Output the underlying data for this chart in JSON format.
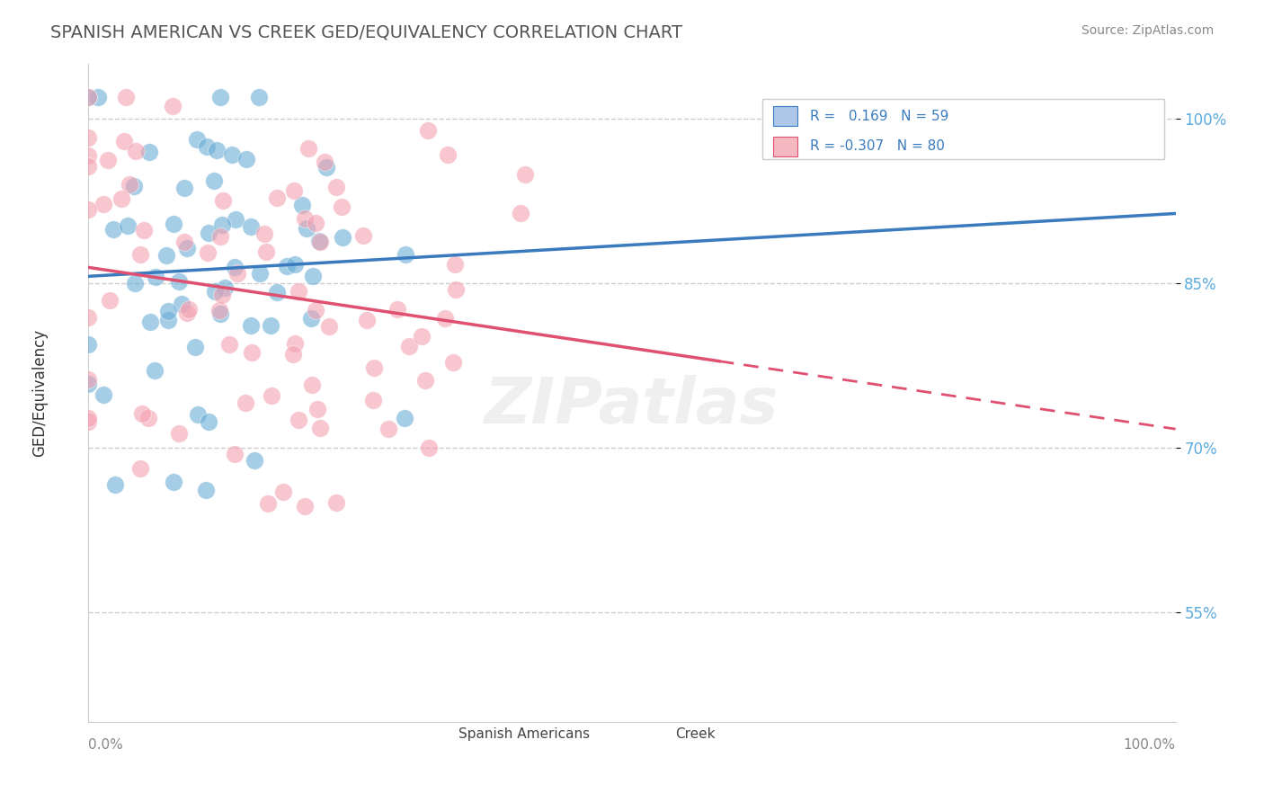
{
  "title": "SPANISH AMERICAN VS CREEK GED/EQUIVALENCY CORRELATION CHART",
  "source": "Source: ZipAtlas.com",
  "ylabel": "GED/Equivalency",
  "right_yticks": [
    100.0,
    85.0,
    70.0,
    55.0
  ],
  "blue_color": "#6aaed6",
  "pink_color": "#f4a0b0",
  "blue_line_color": "#3a7bbf",
  "pink_line_color": "#e05070",
  "blue_r": 0.169,
  "blue_n": 59,
  "pink_r": -0.307,
  "pink_n": 80,
  "watermark": "ZIPatlas",
  "background_color": "#ffffff",
  "grid_color": "#cccccc",
  "title_color": "#555555",
  "axis_color": "#888888",
  "right_label_color": "#5aaadd",
  "legend_blue_color": "#aec6e8",
  "legend_pink_color": "#f4b8c1"
}
